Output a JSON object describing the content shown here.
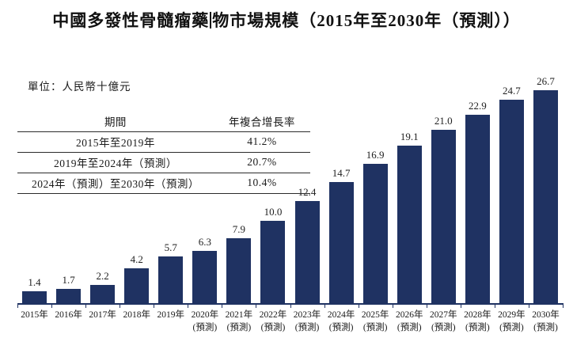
{
  "title": {
    "part1": "中國多發性骨髓瘤藥",
    "part2": "物市場規模（2015年至2030年（預測））"
  },
  "unit_label": "單位：人民幣十億元",
  "cagr_table": {
    "headers": [
      "期間",
      "年複合增長率"
    ],
    "rows": [
      {
        "period": "2015年至2019年",
        "cagr": "41.2%"
      },
      {
        "period": "2019年至2024年（預測）",
        "cagr": "20.7%"
      },
      {
        "period": "2024年（預測）至2030年（預測）",
        "cagr": "10.4%"
      }
    ]
  },
  "chart_data": {
    "type": "bar",
    "title": "中國多發性骨髓瘤藥物市場規模（2015年至2030年（預測））",
    "unit": "人民幣十億元",
    "categories": [
      "2015年",
      "2016年",
      "2017年",
      "2018年",
      "2019年",
      "2020年",
      "2021年",
      "2022年",
      "2023年",
      "2024年",
      "2025年",
      "2026年",
      "2027年",
      "2028年",
      "2029年",
      "2030年"
    ],
    "category_notes": [
      "",
      "",
      "",
      "",
      "",
      "(預測)",
      "(預測)",
      "(預測)",
      "(預測)",
      "(預測)",
      "(預測)",
      "(預測)",
      "(預測)",
      "(預測)",
      "(預測)",
      "(預測)"
    ],
    "values": [
      1.4,
      1.7,
      2.2,
      4.2,
      5.7,
      6.3,
      7.9,
      10.0,
      12.4,
      14.7,
      16.9,
      19.1,
      21.0,
      22.9,
      24.7,
      26.7
    ],
    "value_labels_shown": true,
    "bar_color": "#1F3262",
    "axis_color": "#1F3262",
    "xlabel": "",
    "ylabel": "",
    "ylim": [
      0,
      28
    ],
    "grid": false,
    "legend": false
  }
}
